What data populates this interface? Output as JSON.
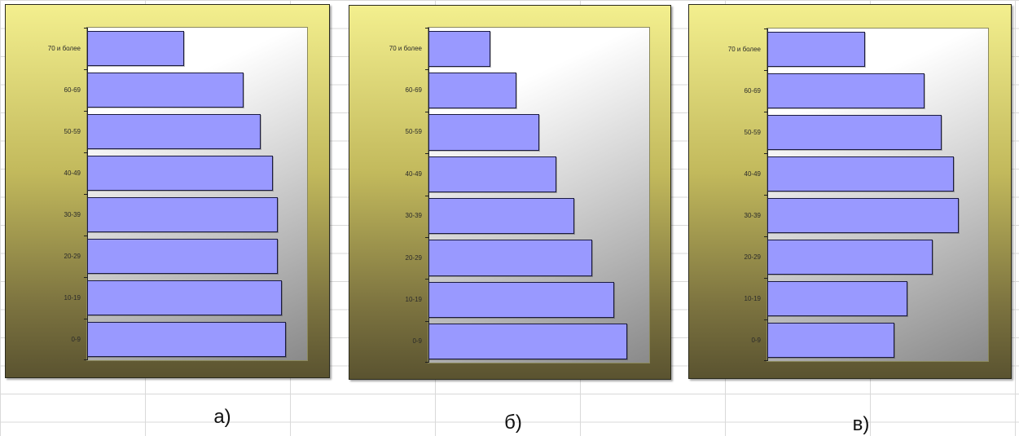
{
  "chart_data": [
    {
      "type": "bar",
      "orientation": "horizontal",
      "caption": "а)",
      "categories": [
        "70 и более",
        "60-69",
        "50-59",
        "40-49",
        "30-39",
        "20-29",
        "10-19",
        "0-9"
      ],
      "values": [
        23,
        37,
        41,
        44,
        45,
        45,
        46,
        47
      ],
      "xlim": [
        0,
        52
      ],
      "grid": false,
      "colors": {
        "bar": "#9999ff",
        "bar_border": "#1a1a40"
      }
    },
    {
      "type": "bar",
      "orientation": "horizontal",
      "caption": "б)",
      "categories": [
        "70 и более",
        "60-69",
        "50-59",
        "40-49",
        "30-39",
        "20-29",
        "10-19",
        "0-9"
      ],
      "values": [
        14,
        20,
        25,
        29,
        33,
        37,
        42,
        45
      ],
      "xlim": [
        0,
        50
      ],
      "grid": false,
      "colors": {
        "bar": "#9999ff",
        "bar_border": "#1a1a40"
      }
    },
    {
      "type": "bar",
      "orientation": "horizontal",
      "caption": "в)",
      "categories": [
        "70 и более",
        "60-69",
        "50-59",
        "40-49",
        "30-39",
        "20-29",
        "10-19",
        "0-9"
      ],
      "values": [
        23,
        37,
        41,
        44,
        45,
        39,
        33,
        30
      ],
      "xlim": [
        0,
        52
      ],
      "grid": false,
      "colors": {
        "bar": "#9999ff",
        "bar_border": "#1a1a40"
      }
    }
  ]
}
